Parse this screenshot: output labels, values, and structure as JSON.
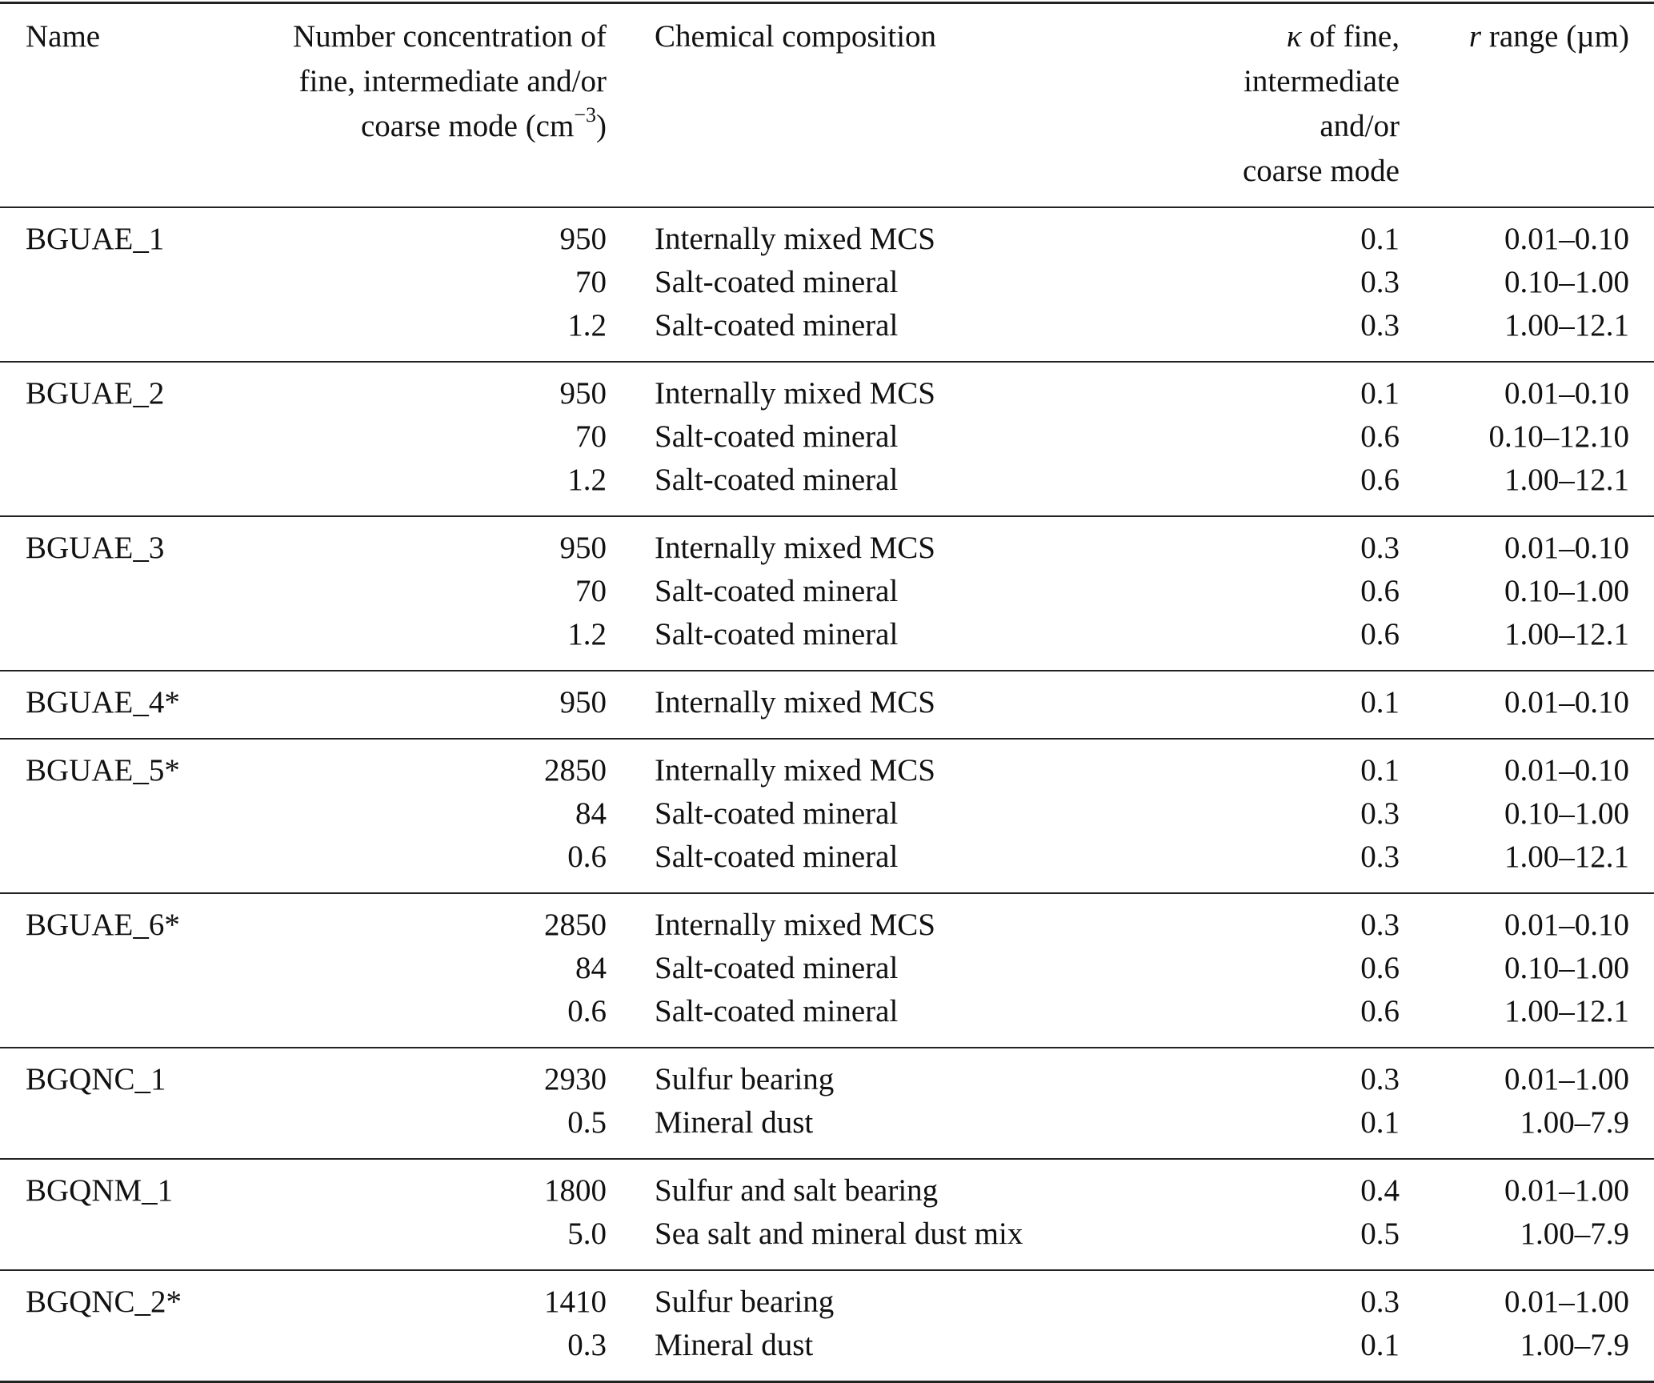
{
  "header": {
    "name": "Name",
    "number_concentration": [
      "Number concentration of",
      "fine, intermediate and/or",
      "coarse mode (cm"
    ],
    "number_concentration_exp": "−3",
    "number_concentration_close": ")",
    "chemical_composition": "Chemical composition",
    "kappa_symbol": "κ",
    "kappa": [
      " of fine,",
      "intermediate and/or",
      "coarse mode"
    ],
    "r_symbol": "r",
    "r_range": " range (µm)"
  },
  "groups": [
    {
      "name": "BGUAE_1",
      "rows": [
        {
          "n": "950",
          "chem": "Internally mixed MCS",
          "kappa": "0.1",
          "r": "0.01–0.10"
        },
        {
          "n": "70",
          "chem": "Salt-coated mineral",
          "kappa": "0.3",
          "r": "0.10–1.00"
        },
        {
          "n": "1.2",
          "chem": "Salt-coated mineral",
          "kappa": "0.3",
          "r": "1.00–12.1"
        }
      ]
    },
    {
      "name": "BGUAE_2",
      "rows": [
        {
          "n": "950",
          "chem": "Internally mixed MCS",
          "kappa": "0.1",
          "r": "0.01–0.10"
        },
        {
          "n": "70",
          "chem": "Salt-coated mineral",
          "kappa": "0.6",
          "r": "0.10–12.10"
        },
        {
          "n": "1.2",
          "chem": "Salt-coated mineral",
          "kappa": "0.6",
          "r": "1.00–12.1"
        }
      ]
    },
    {
      "name": "BGUAE_3",
      "rows": [
        {
          "n": "950",
          "chem": "Internally mixed MCS",
          "kappa": "0.3",
          "r": "0.01–0.10"
        },
        {
          "n": "70",
          "chem": "Salt-coated mineral",
          "kappa": "0.6",
          "r": "0.10–1.00"
        },
        {
          "n": "1.2",
          "chem": "Salt-coated mineral",
          "kappa": "0.6",
          "r": "1.00–12.1"
        }
      ]
    },
    {
      "name": "BGUAE_4*",
      "rows": [
        {
          "n": "950",
          "chem": "Internally mixed MCS",
          "kappa": "0.1",
          "r": "0.01–0.10"
        }
      ]
    },
    {
      "name": "BGUAE_5*",
      "rows": [
        {
          "n": "2850",
          "chem": "Internally mixed MCS",
          "kappa": "0.1",
          "r": "0.01–0.10"
        },
        {
          "n": "84",
          "chem": "Salt-coated mineral",
          "kappa": "0.3",
          "r": "0.10–1.00"
        },
        {
          "n": "0.6",
          "chem": "Salt-coated mineral",
          "kappa": "0.3",
          "r": "1.00–12.1"
        }
      ]
    },
    {
      "name": "BGUAE_6*",
      "rows": [
        {
          "n": "2850",
          "chem": "Internally mixed MCS",
          "kappa": "0.3",
          "r": "0.01–0.10"
        },
        {
          "n": "84",
          "chem": "Salt-coated mineral",
          "kappa": "0.6",
          "r": "0.10–1.00"
        },
        {
          "n": "0.6",
          "chem": "Salt-coated mineral",
          "kappa": "0.6",
          "r": "1.00–12.1"
        }
      ]
    },
    {
      "name": "BGQNC_1",
      "rows": [
        {
          "n": "2930",
          "chem": "Sulfur bearing",
          "kappa": "0.3",
          "r": "0.01–1.00"
        },
        {
          "n": "0.5",
          "chem": "Mineral dust",
          "kappa": "0.1",
          "r": "1.00–7.9"
        }
      ]
    },
    {
      "name": "BGQNM_1",
      "rows": [
        {
          "n": "1800",
          "chem": "Sulfur and salt bearing",
          "kappa": "0.4",
          "r": "0.01–1.00"
        },
        {
          "n": "5.0",
          "chem": "Sea salt and mineral dust mix",
          "kappa": "0.5",
          "r": "1.00–7.9"
        }
      ]
    },
    {
      "name": "BGQNC_2*",
      "rows": [
        {
          "n": "1410",
          "chem": "Sulfur bearing",
          "kappa": "0.3",
          "r": "0.01–1.00"
        },
        {
          "n": "0.3",
          "chem": "Mineral dust",
          "kappa": "0.1",
          "r": "1.00–7.9"
        }
      ]
    }
  ]
}
